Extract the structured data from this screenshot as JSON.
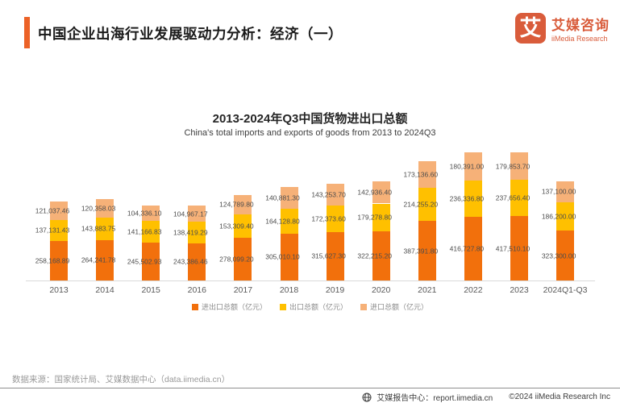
{
  "colors": {
    "accent": "#EC6227",
    "brand": "#D95C3B"
  },
  "header": {
    "title": "中国企业出海行业发展驱动力分析：经济（一）",
    "logo": {
      "glyph": "艾",
      "name_cn": "艾媒咨询",
      "name_en": "iiMedia Research"
    }
  },
  "chart": {
    "title_cn": "2013-2024年Q3中国货物进出口总额",
    "title_en": "China's total imports and exports of goods from 2013 to 2024Q3"
  },
  "chart_data": {
    "type": "bar",
    "stacked": true,
    "title": "2013-2024年Q3中国货物进出口总额",
    "subtitle": "China's total imports and exports of goods from 2013 to 2024Q3",
    "categories": [
      "2013",
      "2014",
      "2015",
      "2016",
      "2017",
      "2018",
      "2019",
      "2020",
      "2021",
      "2022",
      "2023",
      "2024Q1-Q3"
    ],
    "series": [
      {
        "name": "进出口总额（亿元）",
        "color": "#F2700C",
        "values": [
          258168.89,
          264241.78,
          245502.93,
          243386.46,
          278099.2,
          305010.1,
          315627.3,
          322215.2,
          387391.8,
          416727.8,
          417510.1,
          323300.0
        ]
      },
      {
        "name": "出口总额（亿元）",
        "color": "#FFC000",
        "values": [
          137131.43,
          143883.75,
          141166.83,
          138419.29,
          153309.4,
          164128.8,
          172373.6,
          179278.8,
          214255.2,
          236336.8,
          237656.4,
          186200.0
        ]
      },
      {
        "name": "进口总额（亿元）",
        "color": "#F6B178",
        "values": [
          121037.46,
          120358.03,
          104336.1,
          104967.17,
          124789.8,
          140881.3,
          143253.7,
          142936.4,
          173136.6,
          180391.0,
          179853.7,
          137100.0
        ]
      }
    ],
    "ylim": [
      0,
      840000
    ],
    "grid": false,
    "value_labels": true,
    "legend_position": "bottom"
  },
  "datasource": "数据来源：国家统计局、艾媒数据中心（data.iimedia.cn）",
  "footer": {
    "report_center": "艾媒报告中心：report.iimedia.cn",
    "copyright": "©2024  iiMedia Research Inc"
  }
}
